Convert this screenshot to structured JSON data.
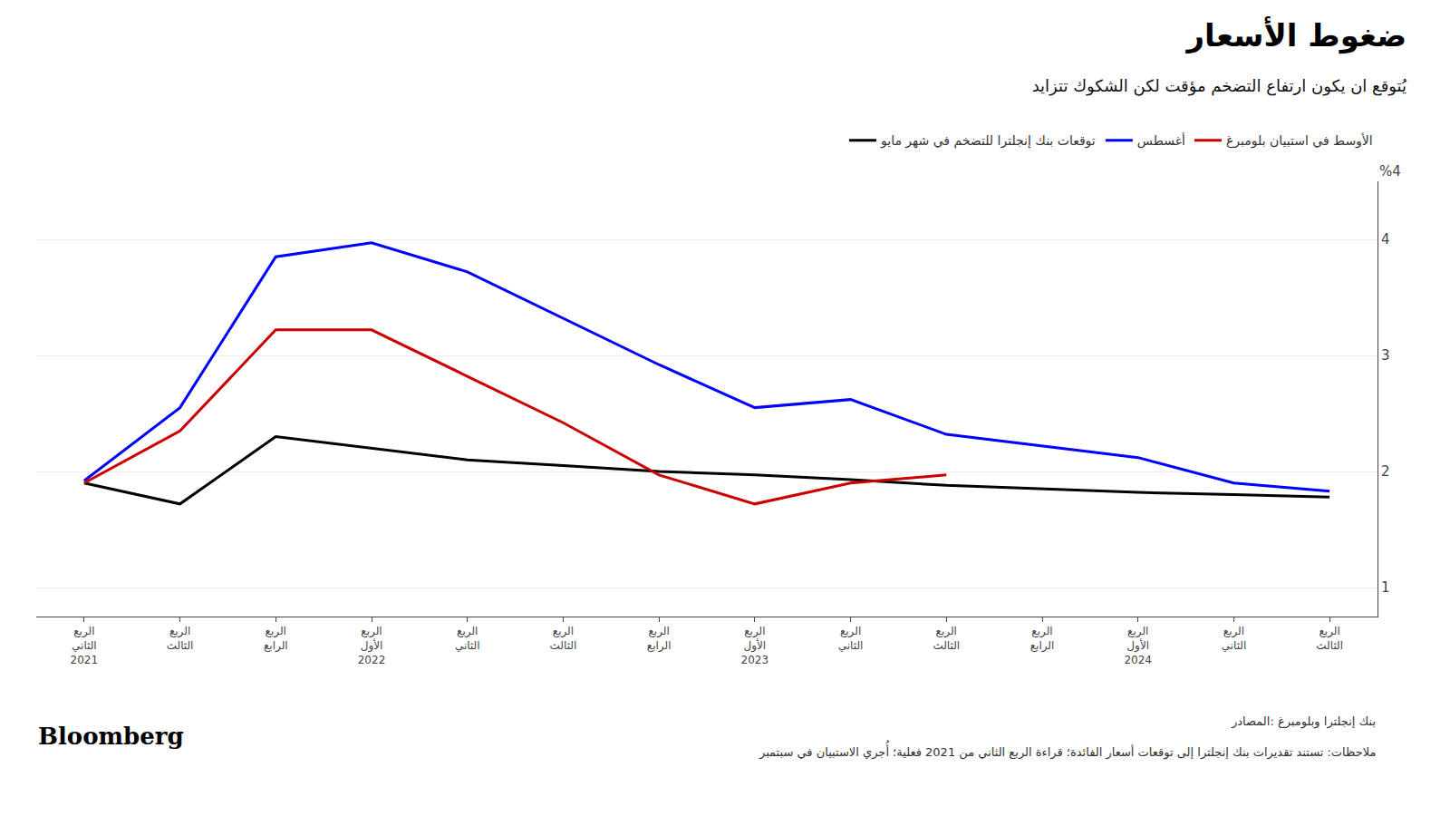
{
  "chart_data": {
    "type": "line",
    "title": "ضغوط الأسعار",
    "subtitle": "يُتوقع ان يكون ارتفاع التضخم مؤقت لكن الشكوك تتزايد",
    "annotations": [
      "%4",
      "بنك إنجلترا وبلومبرغ :المصادر",
      "ملاحظات: تستند تقديرات بنك إنجلترا إلى توقعات أسعار الفائدة؛ قراءة الربع الثاني من 2021 فعلية؛ أُجري الاستبيان في سبتمبر",
      "Bloomberg"
    ],
    "categories": [
      "الربع\nالثاني\n2021",
      "الربع\nالثالث",
      "الربع\nالرابع",
      "الربع\nالأول\n2022",
      "الربع\nالثاني",
      "الربع\nالثالث",
      "الربع\nالرابع",
      "الربع\nالأول\n2023",
      "الربع\nالثاني",
      "الربع\nالثالث",
      "الربع\nالرابع",
      "الربع\nالأول\n2024",
      "الربع\nالثاني",
      "الربع\nالثالث"
    ],
    "series": [
      {
        "name": "توقعات بنك إنجلترا للتضخم في شهر مايو",
        "color": "#000000",
        "values": [
          1.9,
          1.72,
          2.3,
          2.2,
          2.1,
          2.05,
          2.0,
          1.97,
          1.93,
          1.88,
          1.85,
          1.82,
          1.8,
          1.78
        ]
      },
      {
        "name": "أغسطس",
        "color": "#0000ff",
        "values": [
          1.92,
          2.55,
          3.85,
          3.97,
          3.72,
          3.32,
          2.92,
          2.55,
          2.62,
          2.32,
          2.22,
          2.12,
          1.9,
          1.83
        ]
      },
      {
        "name": "الأوسط في استبيان بلومبرغ",
        "color": "#cc0000",
        "values": [
          1.9,
          2.35,
          3.22,
          3.22,
          2.82,
          2.42,
          1.97,
          1.72,
          1.9,
          1.97,
          null,
          null,
          null,
          null
        ]
      }
    ],
    "ylim": [
      0.75,
      4.5
    ],
    "yticks": [
      1,
      2,
      3,
      4
    ],
    "grid": true
  }
}
